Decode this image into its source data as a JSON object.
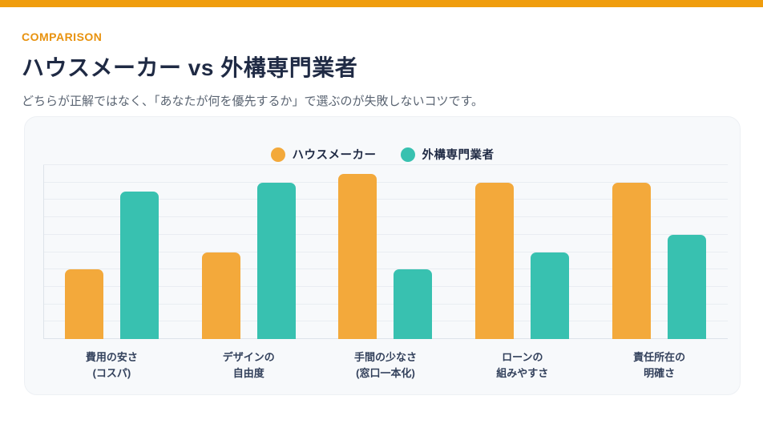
{
  "page": {
    "eyebrow": "COMPARISON",
    "title": "ハウスメーカー vs 外構専門業者",
    "subtitle": "どちらが正解ではなく、「あなたが何を優先するか」で選ぶのが失敗しないコツです。"
  },
  "colors": {
    "top_banner": "#F09D0D",
    "eyebrow_text": "#E8920E",
    "heading_text": "#1F2A44",
    "subtitle_text": "#5A6472",
    "card_background": "#F7F9FB",
    "gridline": "#E9EDF2",
    "axis_line": "#DDE3EA",
    "axis_label_text": "#33415C"
  },
  "chart_data": {
    "type": "bar",
    "categories": [
      [
        "費用の安さ",
        "(コスパ)"
      ],
      [
        "デザインの",
        "自由度"
      ],
      [
        "手間の少なさ",
        "(窓口一本化)"
      ],
      [
        "ローンの",
        "組みやすさ"
      ],
      [
        "責任所在の",
        "明確さ"
      ]
    ],
    "series": [
      {
        "name": "ハウスメーカー",
        "color": "#F3A93B",
        "values": [
          4,
          5,
          9.5,
          9,
          9
        ]
      },
      {
        "name": "外構専門業者",
        "color": "#38C1B0",
        "values": [
          8.5,
          9,
          4,
          5,
          6
        ]
      }
    ],
    "ylim": [
      0,
      10
    ],
    "grid_step": 1,
    "grid": true,
    "legend_position": "top-center",
    "title": "",
    "xlabel": "",
    "ylabel": ""
  }
}
